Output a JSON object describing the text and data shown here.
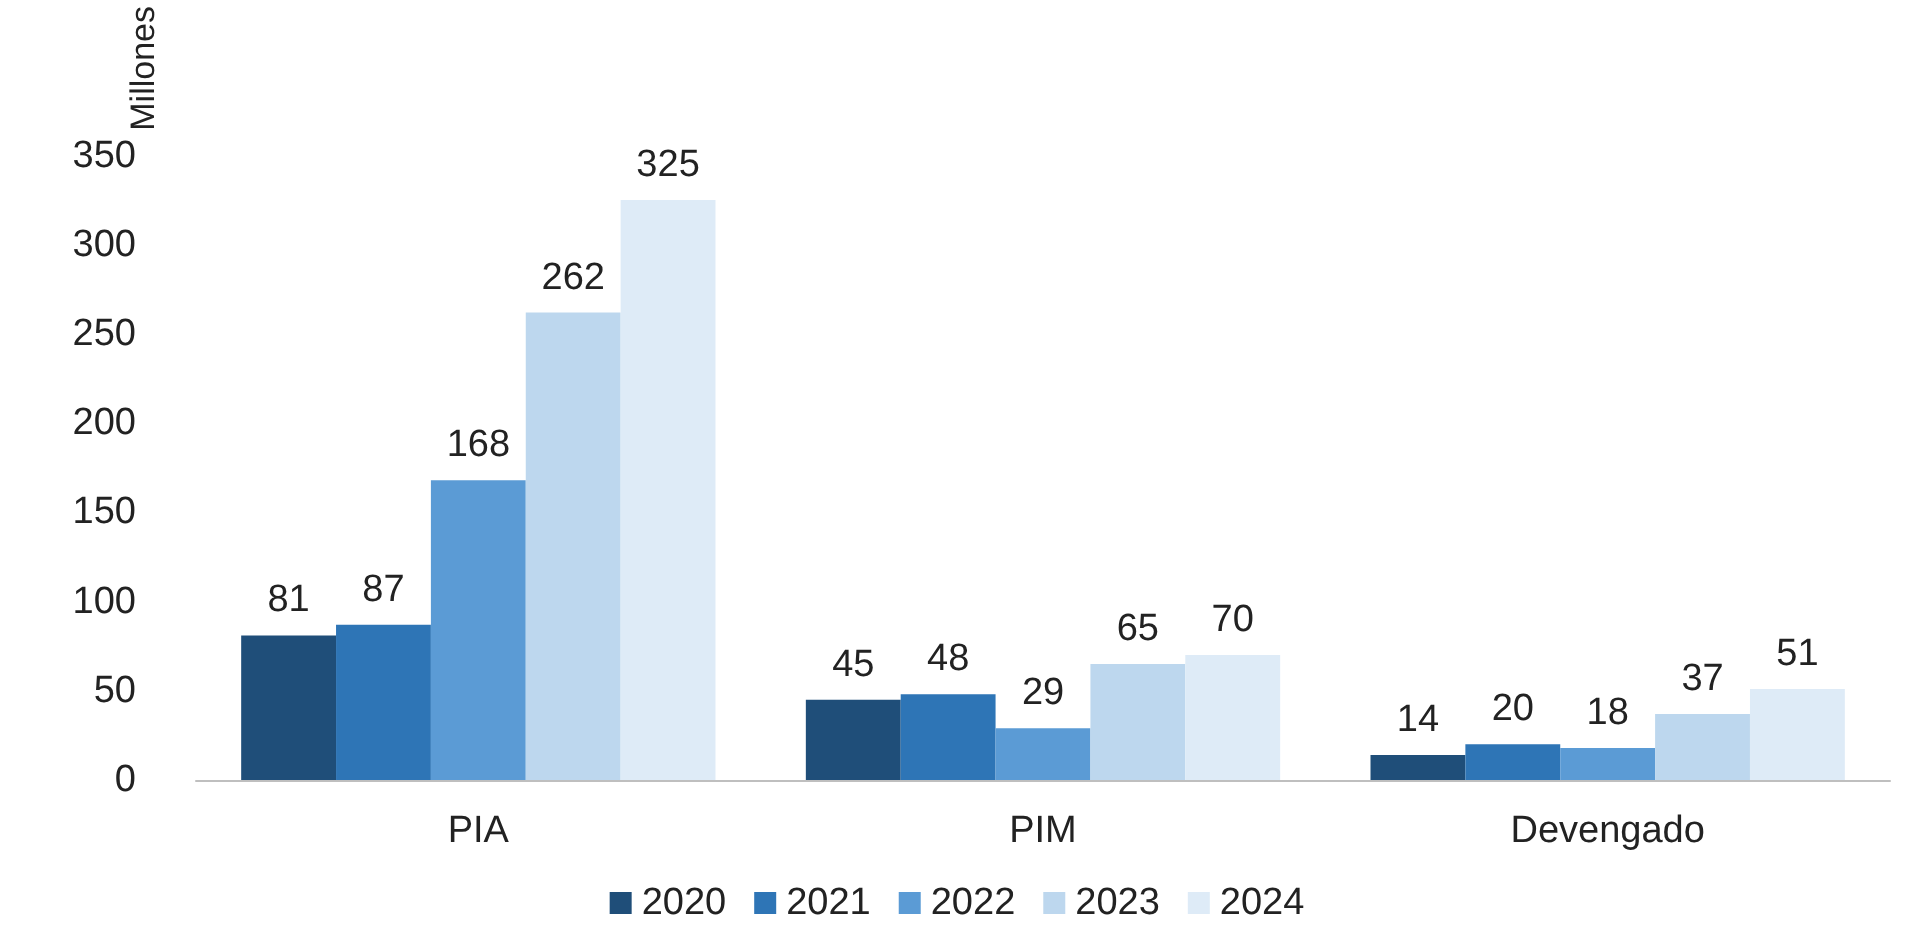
{
  "chart_data": {
    "type": "bar",
    "ylabel": "Millones",
    "categories": [
      "PIA",
      "PIM",
      "Devengado"
    ],
    "series": [
      {
        "name": "2020",
        "color": "#1f4e79",
        "values": [
          81,
          45,
          14
        ]
      },
      {
        "name": "2021",
        "color": "#2e75b6",
        "values": [
          87,
          48,
          20
        ]
      },
      {
        "name": "2022",
        "color": "#5b9bd5",
        "values": [
          168,
          29,
          18
        ]
      },
      {
        "name": "2023",
        "color": "#bdd7ee",
        "values": [
          262,
          65,
          37
        ]
      },
      {
        "name": "2024",
        "color": "#deebf7",
        "values": [
          325,
          70,
          51
        ]
      }
    ],
    "ylim": [
      0,
      350
    ],
    "yticks": [
      0,
      50,
      100,
      150,
      200,
      250,
      300,
      350
    ],
    "grid": false,
    "legend": "bottom",
    "data_labels": true
  }
}
